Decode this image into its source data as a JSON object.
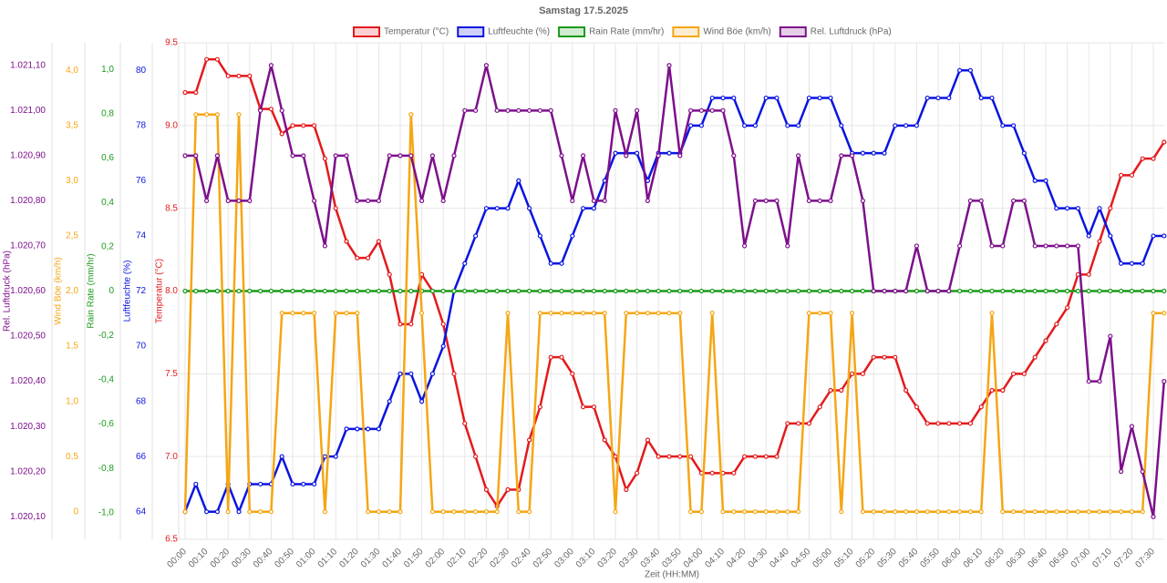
{
  "chart_data": {
    "type": "line",
    "title": "Samstag 17.5.2025",
    "x_label": "Zeit (HH:MM)",
    "grid": true,
    "legend": "top",
    "categories": [
      "00:00",
      null,
      "00:10",
      null,
      "00:20",
      null,
      "00:30",
      null,
      "00:40",
      null,
      "00:50",
      null,
      "01:00",
      null,
      "01:10",
      null,
      "01:20",
      null,
      "01:30",
      null,
      "01:40",
      null,
      "01:50",
      null,
      "02:00",
      null,
      "02:10",
      null,
      "02:20",
      null,
      "02:30",
      null,
      "02:40",
      null,
      "02:50",
      null,
      "03:00",
      null,
      "03:10",
      null,
      "03:20",
      null,
      "03:30",
      null,
      "03:40",
      null,
      "03:50",
      null,
      "04:00",
      null,
      "04:10",
      null,
      "04:20",
      null,
      "04:30",
      null,
      "04:40",
      null,
      "04:50",
      null,
      "05:00",
      null,
      "05:10",
      null,
      "05:20",
      null,
      "05:30",
      null,
      "05:40",
      null,
      "05:50",
      null,
      "06:00",
      null,
      "06:10",
      null,
      "06:20",
      null,
      "06:30",
      null,
      "06:40",
      null,
      "06:50",
      null,
      "07:00",
      null,
      "07:10",
      null,
      "07:20",
      null,
      "07:30",
      null
    ],
    "series": [
      {
        "name": "Temperatur (°C)",
        "axis_label": "Temperatur (°C)",
        "color": "#e31a1c",
        "ylim": [
          6.5,
          9.5
        ],
        "yticks": [
          6.5,
          {
            "value": 7,
            "label": "7.0"
          },
          7.5,
          {
            "value": 8,
            "label": "8.0"
          },
          8.5,
          {
            "value": 9,
            "label": "9.0"
          },
          9.5
        ],
        "values": [
          9.2,
          9.2,
          9.4,
          9.4,
          9.3,
          9.3,
          9.3,
          9.1,
          9.1,
          8.95,
          9.0,
          9.0,
          9.0,
          8.8,
          8.5,
          8.3,
          8.2,
          8.2,
          8.3,
          8.1,
          7.8,
          7.8,
          8.1,
          8.0,
          7.8,
          7.5,
          7.2,
          7.0,
          6.8,
          6.7,
          6.8,
          6.8,
          7.1,
          7.3,
          7.6,
          7.6,
          7.5,
          7.3,
          7.3,
          7.1,
          7.0,
          6.8,
          6.9,
          7.1,
          7.0,
          7.0,
          7.0,
          7.0,
          6.9,
          6.9,
          6.9,
          6.9,
          7.0,
          7.0,
          7.0,
          7.0,
          7.2,
          7.2,
          7.2,
          7.3,
          7.4,
          7.4,
          7.5,
          7.5,
          7.6,
          7.6,
          7.6,
          7.4,
          7.3,
          7.2,
          7.2,
          7.2,
          7.2,
          7.2,
          7.3,
          7.4,
          7.4,
          7.5,
          7.5,
          7.6,
          7.7,
          7.8,
          7.9,
          8.1,
          8.1,
          8.3,
          8.5,
          8.7,
          8.7,
          8.8,
          8.8,
          8.9
        ]
      },
      {
        "name": "Luftfeuchte (%)",
        "axis_label": "Luftfeuchte (%)",
        "color": "#0a14e0",
        "ylim": [
          63,
          81
        ],
        "yticks": [
          64,
          66,
          68,
          70,
          72,
          74,
          76,
          78,
          80
        ],
        "values": [
          64,
          65,
          64,
          64,
          65,
          64,
          65,
          65,
          65,
          66,
          65,
          65,
          65,
          66,
          66,
          67,
          67,
          67,
          67,
          68,
          69,
          69,
          68,
          69,
          70,
          72,
          73,
          74,
          75,
          75,
          75,
          76,
          75,
          74,
          73,
          73,
          74,
          75,
          75,
          76,
          77,
          77,
          77,
          76,
          77,
          77,
          77,
          78,
          78,
          79,
          79,
          79,
          78,
          78,
          79,
          79,
          78,
          78,
          79,
          79,
          79,
          78,
          77,
          77,
          77,
          77,
          78,
          78,
          78,
          79,
          79,
          79,
          80,
          80,
          79,
          79,
          78,
          78,
          77,
          76,
          76,
          75,
          75,
          75,
          74,
          75,
          74,
          73,
          73,
          73,
          74,
          74
        ]
      },
      {
        "name": "Rain Rate (mm/hr)",
        "axis_label": "Rain Rate (mm/hr)",
        "color": "#1a9a1a",
        "ylim": [
          -1.12,
          1.12
        ],
        "yticks": [
          {
            "value": -1,
            "label": "-1,0"
          },
          {
            "value": -0.8,
            "label": "-0,8"
          },
          {
            "value": -0.6,
            "label": "-0,6"
          },
          {
            "value": -0.4,
            "label": "-0,4"
          },
          {
            "value": -0.2,
            "label": "-0,2"
          },
          0,
          {
            "value": 0.2,
            "label": "0,2"
          },
          {
            "value": 0.4,
            "label": "0,4"
          },
          {
            "value": 0.6,
            "label": "0,6"
          },
          {
            "value": 0.8,
            "label": "0,8"
          },
          {
            "value": 1,
            "label": "1,0"
          }
        ],
        "values": [
          0,
          0,
          0,
          0,
          0,
          0,
          0,
          0,
          0,
          0,
          0,
          0,
          0,
          0,
          0,
          0,
          0,
          0,
          0,
          0,
          0,
          0,
          0,
          0,
          0,
          0,
          0,
          0,
          0,
          0,
          0,
          0,
          0,
          0,
          0,
          0,
          0,
          0,
          0,
          0,
          0,
          0,
          0,
          0,
          0,
          0,
          0,
          0,
          0,
          0,
          0,
          0,
          0,
          0,
          0,
          0,
          0,
          0,
          0,
          0,
          0,
          0,
          0,
          0,
          0,
          0,
          0,
          0,
          0,
          0,
          0,
          0,
          0,
          0,
          0,
          0,
          0,
          0,
          0,
          0,
          0,
          0,
          0,
          0,
          0,
          0,
          0,
          0,
          0,
          0,
          0,
          0
        ]
      },
      {
        "name": "Wind Böe (km/h)",
        "axis_label": "Wind Böe (km/h)",
        "color": "#f5a614",
        "ylim": [
          -0.25,
          4.25
        ],
        "yticks": [
          0,
          {
            "value": 0.5,
            "label": "0,5"
          },
          {
            "value": 1,
            "label": "1,0"
          },
          {
            "value": 1.5,
            "label": "1,5"
          },
          {
            "value": 2,
            "label": "2,0"
          },
          {
            "value": 2.5,
            "label": "2,5"
          },
          {
            "value": 3,
            "label": "3,0"
          },
          {
            "value": 3.5,
            "label": "3,5"
          },
          {
            "value": 4,
            "label": "4,0"
          }
        ],
        "values": [
          0,
          3.6,
          3.6,
          3.6,
          0,
          3.6,
          0,
          0,
          0,
          1.8,
          1.8,
          1.8,
          1.8,
          0,
          1.8,
          1.8,
          1.8,
          0,
          0,
          0,
          0,
          3.6,
          1.8,
          0,
          0,
          0,
          0,
          0,
          0,
          0,
          1.8,
          0,
          0,
          1.8,
          1.8,
          1.8,
          1.8,
          1.8,
          1.8,
          1.8,
          0,
          1.8,
          1.8,
          1.8,
          1.8,
          1.8,
          1.8,
          0,
          0,
          1.8,
          0,
          0,
          0,
          0,
          0,
          0,
          0,
          0,
          1.8,
          1.8,
          1.8,
          0,
          1.8,
          0,
          0,
          0,
          0,
          0,
          0,
          0,
          0,
          0,
          0,
          0,
          0,
          1.8,
          0,
          0,
          0,
          0,
          0,
          0,
          0,
          0,
          0,
          0,
          0,
          0,
          0,
          0,
          1.8,
          1.8
        ]
      },
      {
        "name": "Rel. Luftdruck (hPa)",
        "axis_label": "Rel. Luftdruck (hPa)",
        "color": "#7d0f8c",
        "ylim": [
          1020.05,
          1021.15
        ],
        "yticks": [
          {
            "value": 1020.1,
            "label": "1.020,10"
          },
          {
            "value": 1020.2,
            "label": "1.020,20"
          },
          {
            "value": 1020.3,
            "label": "1.020,30"
          },
          {
            "value": 1020.4,
            "label": "1.020,40"
          },
          {
            "value": 1020.5,
            "label": "1.020,50"
          },
          {
            "value": 1020.6,
            "label": "1.020,60"
          },
          {
            "value": 1020.7,
            "label": "1.020,70"
          },
          {
            "value": 1020.8,
            "label": "1.020,80"
          },
          {
            "value": 1020.9,
            "label": "1.020,90"
          },
          {
            "value": 1021.0,
            "label": "1.021,00"
          },
          {
            "value": 1021.1,
            "label": "1.021,10"
          }
        ],
        "values": [
          1020.9,
          1020.9,
          1020.8,
          1020.9,
          1020.8,
          1020.8,
          1020.8,
          1021.0,
          1021.1,
          1021.0,
          1020.9,
          1020.9,
          1020.8,
          1020.7,
          1020.9,
          1020.9,
          1020.8,
          1020.8,
          1020.8,
          1020.9,
          1020.9,
          1020.9,
          1020.8,
          1020.9,
          1020.8,
          1020.9,
          1021.0,
          1021.0,
          1021.1,
          1021.0,
          1021.0,
          1021.0,
          1021.0,
          1021.0,
          1021.0,
          1020.9,
          1020.8,
          1020.9,
          1020.8,
          1020.8,
          1021.0,
          1020.9,
          1021.0,
          1020.8,
          1020.9,
          1021.1,
          1020.9,
          1021.0,
          1021.0,
          1021.0,
          1021.0,
          1020.9,
          1020.7,
          1020.8,
          1020.8,
          1020.8,
          1020.7,
          1020.9,
          1020.8,
          1020.8,
          1020.8,
          1020.9,
          1020.9,
          1020.8,
          1020.6,
          1020.6,
          1020.6,
          1020.6,
          1020.7,
          1020.6,
          1020.6,
          1020.6,
          1020.7,
          1020.8,
          1020.8,
          1020.7,
          1020.7,
          1020.8,
          1020.8,
          1020.7,
          1020.7,
          1020.7,
          1020.7,
          1020.7,
          1020.4,
          1020.4,
          1020.5,
          1020.2,
          1020.3,
          1020.2,
          1020.1,
          1020.4
        ]
      }
    ]
  }
}
